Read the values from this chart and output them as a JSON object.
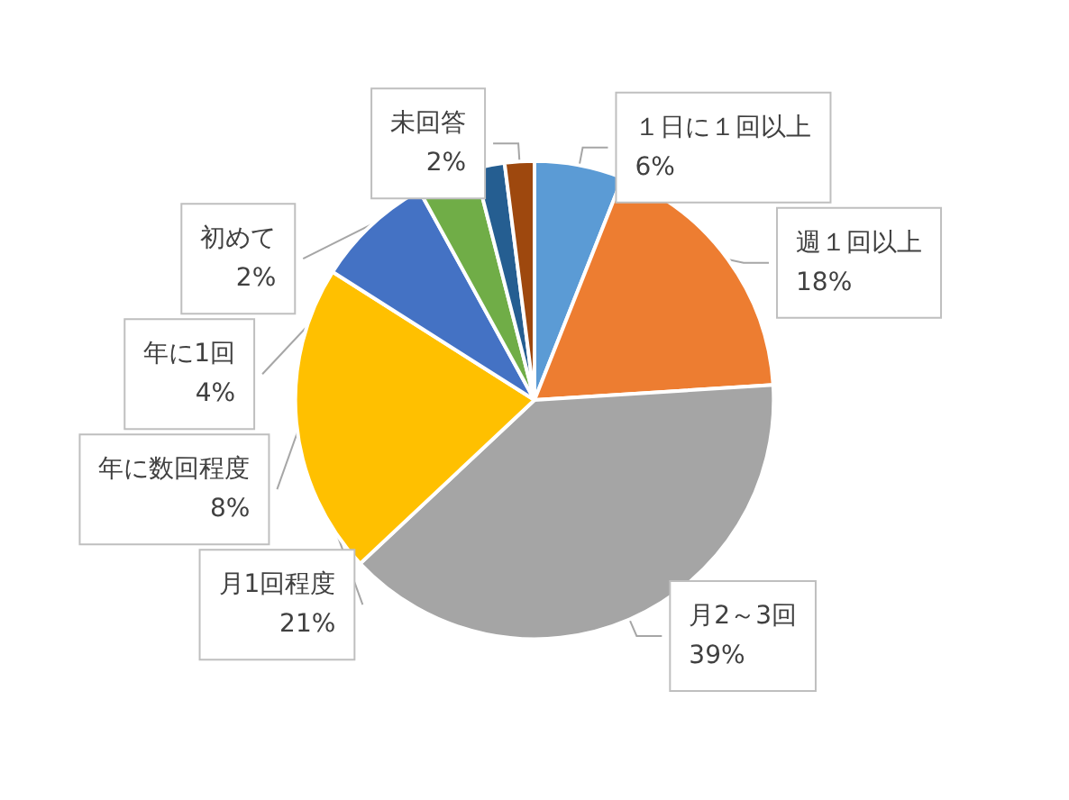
{
  "chart_data": {
    "type": "pie",
    "categories": [
      "１日に１回以上",
      "週１回以上",
      "月2～3回",
      "月1回程度",
      "年に数回程度",
      "年に1回",
      "初めて",
      "未回答"
    ],
    "values": [
      6,
      18,
      39,
      21,
      8,
      4,
      2,
      2
    ],
    "colors": [
      "#5b9bd5",
      "#ed7d31",
      "#a5a5a5",
      "#ffc000",
      "#4472c4",
      "#70ad47",
      "#255e91",
      "#9e480e"
    ],
    "value_labels": [
      "6%",
      "18%",
      "39%",
      "21%",
      "8%",
      "4%",
      "2%",
      "2%"
    ],
    "legend": false
  }
}
